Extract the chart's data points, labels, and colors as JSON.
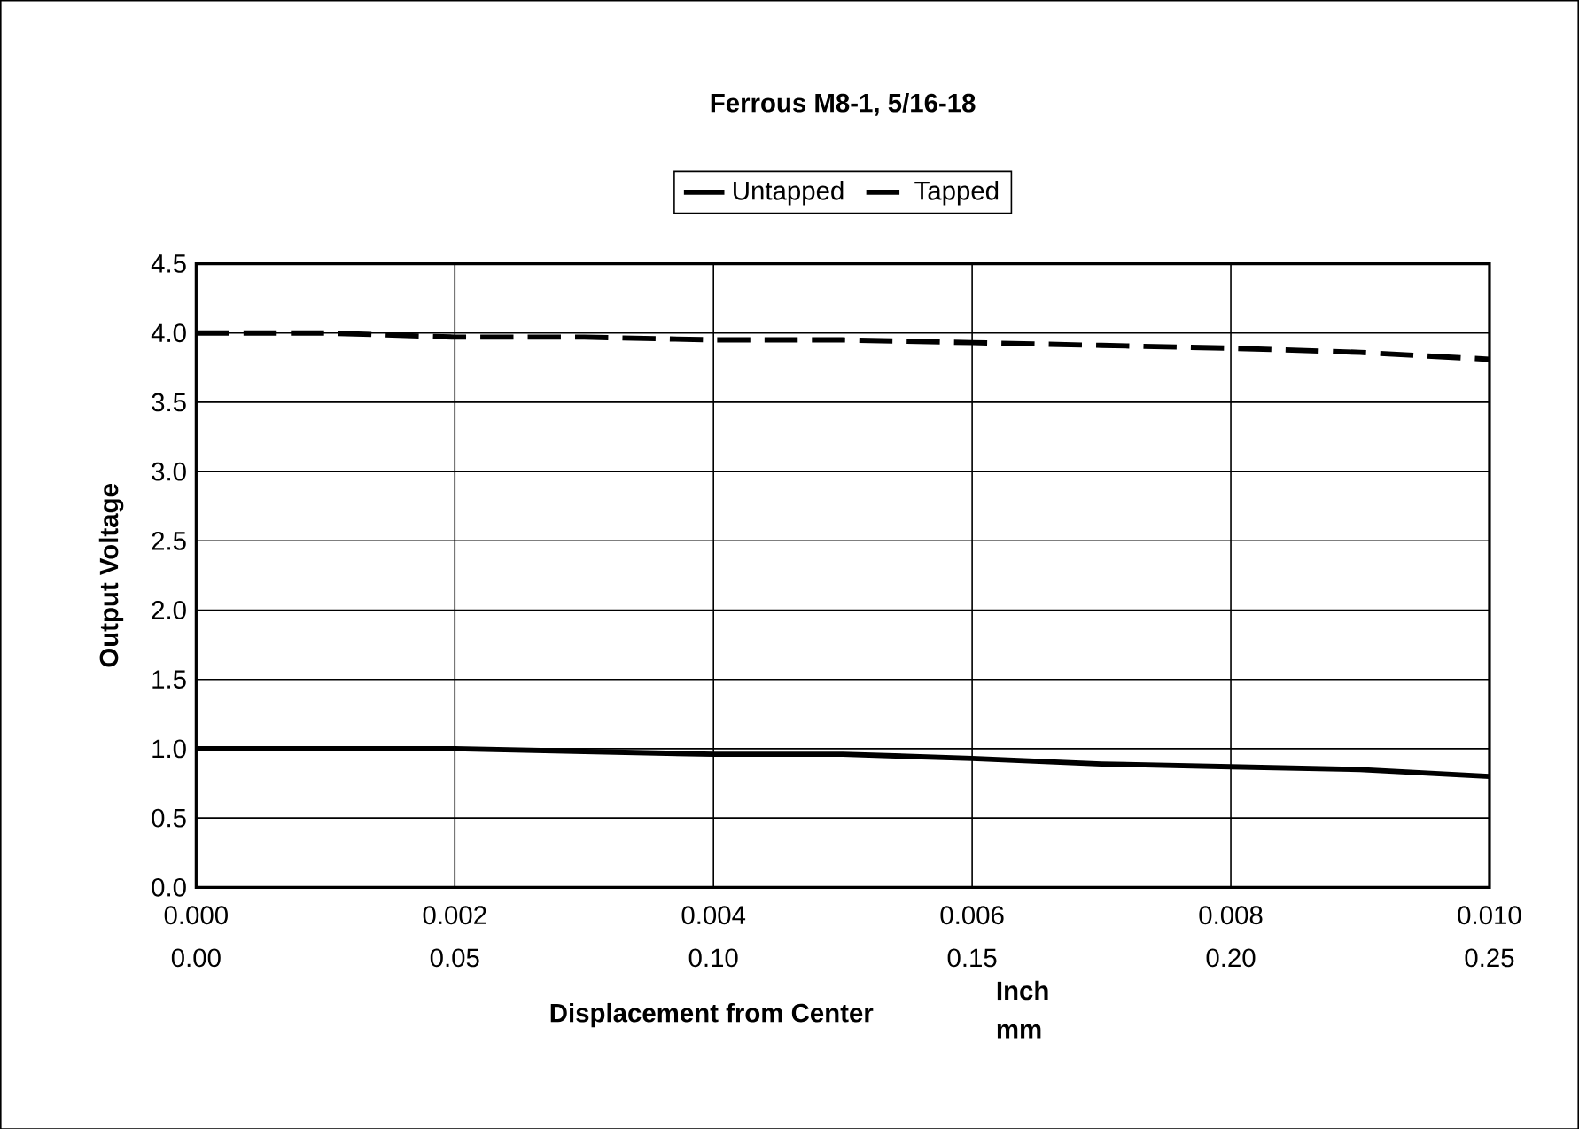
{
  "chart_data": {
    "type": "line",
    "title": "Ferrous M8-1, 5/16-18",
    "xlabel": "Displacement from Center",
    "ylabel": "Output Voltage",
    "annotations": [
      "Inch",
      "mm"
    ],
    "x": [
      0,
      0.001,
      0.002,
      0.003,
      0.004,
      0.005,
      0.006,
      0.007,
      0.008,
      0.009,
      0.01
    ],
    "series": [
      {
        "name": "Untapped",
        "color": "#000000",
        "line_style": "solid",
        "values": [
          1.0,
          1.0,
          1.0,
          0.98,
          0.96,
          0.96,
          0.93,
          0.89,
          0.87,
          0.85,
          0.8
        ]
      },
      {
        "name": "Tapped",
        "color": "#000000",
        "line_style": "dashed",
        "values": [
          4.0,
          4.0,
          3.97,
          3.97,
          3.95,
          3.95,
          3.93,
          3.91,
          3.89,
          3.86,
          3.81
        ]
      }
    ],
    "xlim": [
      0,
      0.01
    ],
    "xticks": [
      {
        "value": 0,
        "label": "0.000"
      },
      {
        "value": 0.002,
        "label": "0.002"
      },
      {
        "value": 0.004,
        "label": "0.004"
      },
      {
        "value": 0.006,
        "label": "0.006"
      },
      {
        "value": 0.008,
        "label": "0.008"
      },
      {
        "value": 0.01,
        "label": "0.010"
      }
    ],
    "x2lim": [
      0,
      0.25
    ],
    "x2ticks": [
      {
        "value": 0,
        "label": "0.00"
      },
      {
        "value": 0.05,
        "label": "0.05"
      },
      {
        "value": 0.1,
        "label": "0.10"
      },
      {
        "value": 0.15,
        "label": "0.15"
      },
      {
        "value": 0.2,
        "label": "0.20"
      },
      {
        "value": 0.25,
        "label": "0.25"
      }
    ],
    "ylim": [
      0,
      4.5
    ],
    "yticks": [
      {
        "value": 0,
        "label": "0.0"
      },
      {
        "value": 0.5,
        "label": "0.5"
      },
      {
        "value": 1.0,
        "label": "1.0"
      },
      {
        "value": 1.5,
        "label": "1.5"
      },
      {
        "value": 2.0,
        "label": "2.0"
      },
      {
        "value": 2.5,
        "label": "2.5"
      },
      {
        "value": 3.0,
        "label": "3.0"
      },
      {
        "value": 3.5,
        "label": "3.5"
      },
      {
        "value": 4.0,
        "label": "4.0"
      },
      {
        "value": 4.5,
        "label": "4.5"
      }
    ],
    "grid": true,
    "legend": "top",
    "marker": "none"
  }
}
